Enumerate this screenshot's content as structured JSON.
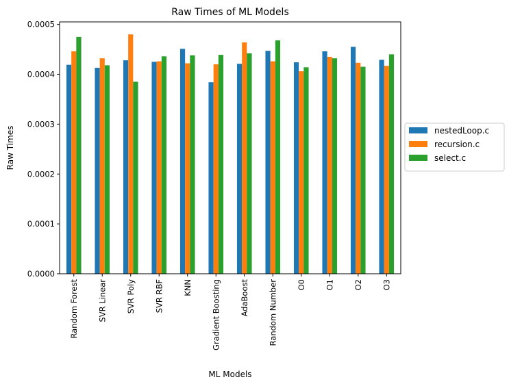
{
  "chart_data": {
    "type": "bar",
    "title": "Raw Times of ML Models",
    "xlabel": "ML Models",
    "ylabel": "Raw Times",
    "ylim": [
      0,
      0.000505
    ],
    "yticks": [
      0.0,
      0.0001,
      0.0002,
      0.0003,
      0.0004,
      0.0005
    ],
    "ytick_labels": [
      "0.0000",
      "0.0001",
      "0.0002",
      "0.0003",
      "0.0004",
      "0.0005"
    ],
    "grid": false,
    "legend_position": "center-right outside",
    "categories": [
      "Random Forest",
      "SVR Linear",
      "SVR Poly",
      "SVR RBF",
      "KNN",
      "Gradient Boosting",
      "AdaBoost",
      "Random Number",
      "O0",
      "O1",
      "O2",
      "O3"
    ],
    "series": [
      {
        "name": "nestedLoop.c",
        "color": "#1f77b4",
        "values": [
          0.000419,
          0.000413,
          0.000428,
          0.000425,
          0.000451,
          0.000384,
          0.000421,
          0.000447,
          0.000424,
          0.000446,
          0.000455,
          0.000429
        ]
      },
      {
        "name": "recursion.c",
        "color": "#ff7f0e",
        "values": [
          0.000446,
          0.000432,
          0.00048,
          0.000426,
          0.000422,
          0.00042,
          0.000464,
          0.000426,
          0.000406,
          0.000435,
          0.000423,
          0.000417
        ]
      },
      {
        "name": "select.c",
        "color": "#2ca02c",
        "values": [
          0.000475,
          0.000418,
          0.000385,
          0.000436,
          0.000438,
          0.000439,
          0.000442,
          0.000468,
          0.000414,
          0.000432,
          0.000415,
          0.00044
        ]
      }
    ]
  }
}
